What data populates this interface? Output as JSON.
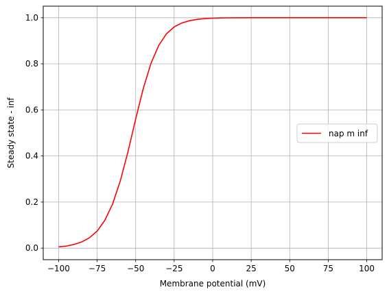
{
  "chart_data": {
    "type": "line",
    "xlabel": "Membrane potential (mV)",
    "ylabel": "Steady state - inf",
    "xlim": [
      -110,
      110
    ],
    "ylim": [
      -0.05,
      1.05
    ],
    "xticks": [
      -100,
      -75,
      -50,
      -25,
      0,
      25,
      50,
      75,
      100
    ],
    "xtick_labels": [
      "−100",
      "−75",
      "−50",
      "−25",
      "0",
      "25",
      "50",
      "75",
      "100"
    ],
    "yticks": [
      0.0,
      0.2,
      0.4,
      0.6,
      0.8,
      1.0
    ],
    "ytick_labels": [
      "0.0",
      "0.2",
      "0.4",
      "0.6",
      "0.8",
      "1.0"
    ],
    "grid": true,
    "legend_position": "center-right",
    "series": [
      {
        "name": "nap m inf",
        "color": "#ff0000",
        "x": [
          -100,
          -95,
          -90,
          -85,
          -80,
          -75,
          -70,
          -65,
          -60,
          -55,
          -50,
          -45,
          -40,
          -35,
          -30,
          -25,
          -20,
          -15,
          -10,
          -5,
          0,
          5,
          10,
          15,
          20,
          25,
          30,
          40,
          50,
          60,
          70,
          80,
          90,
          100
        ],
        "y": [
          0.006,
          0.009,
          0.016,
          0.027,
          0.045,
          0.074,
          0.121,
          0.191,
          0.291,
          0.418,
          0.56,
          0.694,
          0.803,
          0.88,
          0.93,
          0.96,
          0.977,
          0.987,
          0.993,
          0.996,
          0.998,
          0.999,
          0.9995,
          0.9997,
          0.9998,
          0.9999,
          1.0,
          1.0,
          1.0,
          1.0,
          1.0,
          1.0,
          1.0,
          1.0
        ]
      }
    ]
  }
}
